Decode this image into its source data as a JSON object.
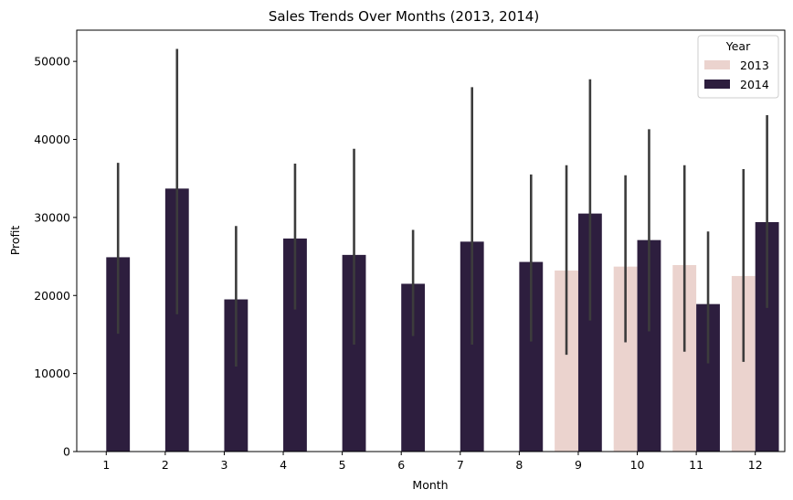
{
  "chart_data": {
    "type": "bar",
    "title": "Sales Trends Over Months (2013, 2014)",
    "xlabel": "Month",
    "ylabel": "Profit",
    "categories": [
      "1",
      "2",
      "3",
      "4",
      "5",
      "6",
      "7",
      "8",
      "9",
      "10",
      "11",
      "12"
    ],
    "ylim": [
      0,
      54000
    ],
    "yticks": [
      0,
      10000,
      20000,
      30000,
      40000,
      50000
    ],
    "ytick_labels": [
      "0",
      "10000",
      "20000",
      "30000",
      "40000",
      "50000"
    ],
    "grid": false,
    "legend": {
      "title": "Year",
      "placement": "top-right"
    },
    "series": [
      {
        "name": "2013",
        "color": "#ebd3ce",
        "values": [
          null,
          null,
          null,
          null,
          null,
          null,
          null,
          null,
          23200,
          23700,
          23900,
          22500
        ],
        "err_low": [
          null,
          null,
          null,
          null,
          null,
          null,
          null,
          null,
          12400,
          14000,
          12800,
          11500
        ],
        "err_high": [
          null,
          null,
          null,
          null,
          null,
          null,
          null,
          null,
          36700,
          35400,
          36700,
          36200
        ]
      },
      {
        "name": "2014",
        "color": "#2d1e3e",
        "values": [
          24900,
          33700,
          19500,
          27300,
          25200,
          21500,
          26900,
          24300,
          30500,
          27100,
          18900,
          29400
        ],
        "err_low": [
          15100,
          17600,
          10900,
          18200,
          13700,
          14800,
          13700,
          14100,
          16800,
          15400,
          11300,
          18400
        ],
        "err_high": [
          37000,
          51600,
          28900,
          36900,
          38800,
          28400,
          46700,
          35500,
          47700,
          41300,
          28200,
          43100
        ]
      }
    ],
    "errorbar_color": "#3c3c3c"
  }
}
